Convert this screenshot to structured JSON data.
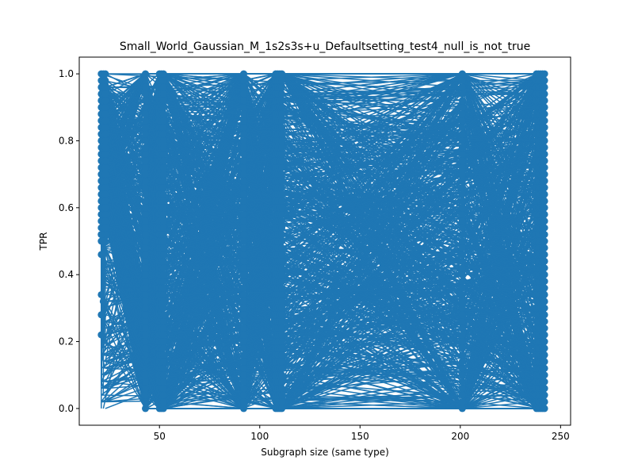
{
  "chart_data": {
    "type": "line",
    "title": "Small_World_Gaussian_M_1s2s3s+u_Defaultsetting_test4_null_is_not_true",
    "xlabel": "Subgraph size (same type)",
    "ylabel": "TPR",
    "xlim": [
      10,
      255
    ],
    "ylim": [
      -0.05,
      1.05
    ],
    "xticks": [
      50,
      100,
      150,
      200,
      250
    ],
    "yticks": [
      0.0,
      0.2,
      0.4,
      0.6,
      0.8,
      1.0
    ],
    "xtick_labels": [
      "50",
      "100",
      "150",
      "200",
      "250"
    ],
    "ytick_labels": [
      "0.0",
      "0.2",
      "0.4",
      "0.6",
      "0.8",
      "1.0"
    ],
    "grid": false,
    "legend": false,
    "color": "#1f77b4",
    "marker": "circle",
    "x_clusters": [
      21,
      22,
      23,
      43,
      50,
      51,
      52,
      92,
      108,
      109,
      110,
      111,
      201,
      238,
      239,
      240,
      241,
      242
    ],
    "y_range_per_cluster": [
      0.0,
      1.0
    ],
    "low_outliers": [
      {
        "x": 21,
        "y": 0.22
      },
      {
        "x": 21,
        "y": 0.28
      },
      {
        "x": 21,
        "y": 0.34
      },
      {
        "x": 22,
        "y": 0.32
      },
      {
        "x": 21,
        "y": 0.46
      },
      {
        "x": 22,
        "y": 0.46
      },
      {
        "x": 21,
        "y": 0.52
      },
      {
        "x": 22,
        "y": 0.5
      }
    ],
    "observation": "Dense tangle of line segments connecting points across subgraph sizes; TPR spans 0.0-1.0 at nearly every x cluster."
  }
}
